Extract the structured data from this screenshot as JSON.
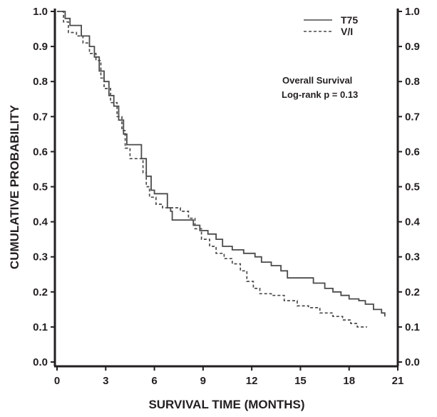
{
  "chart_data": {
    "type": "line",
    "subtype": "kaplan-meier-step",
    "title": "",
    "xlabel": "SURVIVAL TIME (MONTHS)",
    "ylabel": "CUMULATIVE PROBABILITY",
    "xlim": [
      0,
      21
    ],
    "ylim": [
      0.0,
      1.0
    ],
    "xticks": [
      0,
      3,
      6,
      9,
      12,
      15,
      18,
      21
    ],
    "xtick_labels": [
      "0",
      "3",
      "6",
      "9",
      "12",
      "15",
      "18",
      "21"
    ],
    "yticks": [
      0.0,
      0.1,
      0.2,
      0.3,
      0.4,
      0.5,
      0.6,
      0.7,
      0.8,
      0.9,
      1.0
    ],
    "ytick_labels": [
      "0.0",
      "0.1",
      "0.2",
      "0.3",
      "0.4",
      "0.5",
      "0.6",
      "0.7",
      "0.8",
      "0.9",
      "1.0"
    ],
    "right_axis_mirrors_left": true,
    "grid": false,
    "legend_position": "top-right",
    "annotations": [
      "Overall Survival",
      "Log-rank p = 0.13"
    ],
    "series": [
      {
        "name": "T75",
        "style": "solid",
        "color": "#4a4a4a",
        "x": [
          0,
          0.35,
          0.5,
          0.8,
          1.3,
          1.5,
          2.0,
          2.3,
          2.6,
          2.9,
          3.2,
          3.5,
          3.8,
          4.1,
          4.3,
          5.0,
          5.2,
          5.5,
          5.8,
          6.0,
          6.6,
          6.8,
          7.0,
          7.1,
          8.1,
          8.4,
          8.8,
          9.3,
          9.8,
          10.2,
          10.8,
          11.5,
          12.2,
          12.6,
          13.2,
          13.8,
          14.2,
          15.5,
          15.8,
          16.5,
          17.0,
          17.5,
          18.0,
          18.6,
          19.0,
          19.5,
          20.0,
          20.2
        ],
        "y": [
          1.0,
          1.0,
          0.98,
          0.96,
          0.96,
          0.93,
          0.9,
          0.87,
          0.83,
          0.8,
          0.76,
          0.73,
          0.69,
          0.65,
          0.62,
          0.62,
          0.58,
          0.53,
          0.49,
          0.48,
          0.48,
          0.44,
          0.43,
          0.405,
          0.405,
          0.39,
          0.375,
          0.365,
          0.35,
          0.33,
          0.32,
          0.31,
          0.3,
          0.285,
          0.275,
          0.26,
          0.24,
          0.24,
          0.225,
          0.21,
          0.2,
          0.19,
          0.18,
          0.175,
          0.165,
          0.15,
          0.14,
          0.13
        ]
      },
      {
        "name": "V/I",
        "style": "dashed",
        "color": "#4a4a4a",
        "x": [
          0,
          0.3,
          0.4,
          0.7,
          1.2,
          1.6,
          2.0,
          2.4,
          2.7,
          2.9,
          3.3,
          3.7,
          4.0,
          4.2,
          4.5,
          5.0,
          5.3,
          5.5,
          5.7,
          6.1,
          6.5,
          7.3,
          7.6,
          8.1,
          8.5,
          8.9,
          9.4,
          9.8,
          10.3,
          10.8,
          11.3,
          11.7,
          12.1,
          12.5,
          13.2,
          14.0,
          14.8,
          15.5,
          16.2,
          17.0,
          17.6,
          18.1,
          18.5,
          19.1
        ],
        "y": [
          1.0,
          1.0,
          0.97,
          0.94,
          0.93,
          0.91,
          0.88,
          0.86,
          0.81,
          0.78,
          0.74,
          0.7,
          0.66,
          0.61,
          0.58,
          0.58,
          0.54,
          0.5,
          0.47,
          0.45,
          0.44,
          0.44,
          0.43,
          0.41,
          0.38,
          0.35,
          0.33,
          0.31,
          0.295,
          0.28,
          0.26,
          0.23,
          0.21,
          0.195,
          0.19,
          0.175,
          0.16,
          0.155,
          0.14,
          0.13,
          0.12,
          0.11,
          0.1,
          0.1
        ]
      }
    ]
  },
  "legend": {
    "items": [
      {
        "label": "T75",
        "style": "solid"
      },
      {
        "label": "V/I",
        "style": "dashed"
      }
    ]
  },
  "annotation": {
    "line1": "Overall Survival",
    "line2": "Log-rank p = 0.13"
  },
  "colors": {
    "axis": "#231f20",
    "series": "#4a4a4a"
  }
}
